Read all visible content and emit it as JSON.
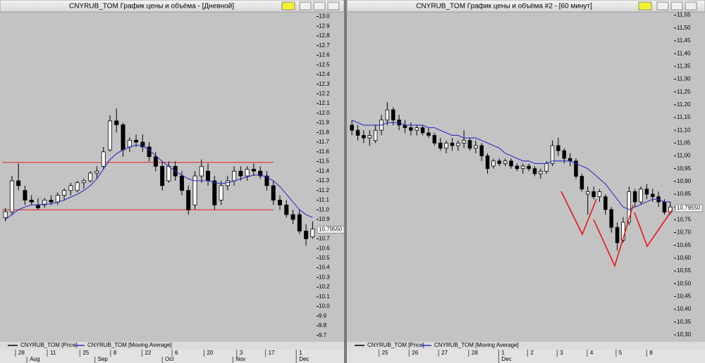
{
  "chart_data": [
    {
      "type": "candlestick",
      "title": "CNYRUB_TOM График цены и объёма - [Дневной]",
      "xlim": [
        0,
        48
      ],
      "xticks": [
        {
          "value": 2.05,
          "label": "28"
        },
        {
          "value": 6.9,
          "label": "11"
        },
        {
          "value": 11.9,
          "label": "25"
        },
        {
          "value": 16.6,
          "label": "8"
        },
        {
          "value": 21.4,
          "label": "22"
        },
        {
          "value": 26,
          "label": "6"
        },
        {
          "value": 30.9,
          "label": "20"
        },
        {
          "value": 35.9,
          "label": "3"
        },
        {
          "value": 40.3,
          "label": "17"
        },
        {
          "value": 45,
          "label": "1"
        }
      ],
      "month_ticks": [
        {
          "value": 3.8,
          "label": "Aug"
        },
        {
          "value": 14.2,
          "label": "Sep"
        },
        {
          "value": 24.5,
          "label": "Oct"
        },
        {
          "value": 35.3,
          "label": "Nov"
        },
        {
          "value": 45,
          "label": "Dec"
        }
      ],
      "ylim": [
        9.64,
        13.04
      ],
      "yticks": [
        9.7,
        9.8,
        9.9,
        {
          "value": 10,
          "label": "10.0"
        },
        10.1,
        10.2,
        10.3,
        10.4,
        10.5,
        10.6,
        10.7,
        10.8,
        10.9,
        {
          "value": 11,
          "label": "11.0"
        },
        11.1,
        11.2,
        11.3,
        11.4,
        11.5,
        11.6,
        11.7,
        11.8,
        11.9,
        {
          "value": 12,
          "label": "12.0"
        },
        12.1,
        12.2,
        12.3,
        12.4,
        12.5,
        12.6,
        12.7,
        12.8,
        12.9,
        {
          "value": 13,
          "label": "13.0"
        }
      ],
      "last_price": {
        "value": 10.7955,
        "label": "10,79550"
      },
      "hlines": [
        {
          "y": 11.49,
          "x": [
            0,
            41.5
          ],
          "color": "#e02020"
        },
        {
          "y": 11.0,
          "x": [
            0,
            41.5
          ],
          "color": "#e02020"
        }
      ],
      "series": [
        {
          "name": "CNYRUB_TOM [Price]",
          "color": "#000000",
          "up_color": "#ffffff",
          "down_color": "#000000",
          "ohlc": [
            [
              10.92,
              11.02,
              10.88,
              10.98
            ],
            [
              10.98,
              11.35,
              10.95,
              11.3
            ],
            [
              11.3,
              11.48,
              11.2,
              11.25
            ],
            [
              11.2,
              11.25,
              11.05,
              11.1
            ],
            [
              11.1,
              11.15,
              11.05,
              11.08
            ],
            [
              11.05,
              11.12,
              11.0,
              11.02
            ],
            [
              11.05,
              11.12,
              11.02,
              11.1
            ],
            [
              11.1,
              11.15,
              11.05,
              11.08
            ],
            [
              11.08,
              11.18,
              11.05,
              11.15
            ],
            [
              11.15,
              11.22,
              11.1,
              11.2
            ],
            [
              11.2,
              11.28,
              11.15,
              11.25
            ],
            [
              11.2,
              11.3,
              11.18,
              11.28
            ],
            [
              11.28,
              11.32,
              11.22,
              11.3
            ],
            [
              11.3,
              11.4,
              11.28,
              11.38
            ],
            [
              11.38,
              11.45,
              11.32,
              11.4
            ],
            [
              11.45,
              11.65,
              11.42,
              11.6
            ],
            [
              11.62,
              11.98,
              11.6,
              11.92
            ],
            [
              11.92,
              12.05,
              11.8,
              11.88
            ],
            [
              11.88,
              11.9,
              11.55,
              11.62
            ],
            [
              11.65,
              11.75,
              11.6,
              11.72
            ],
            [
              11.72,
              11.78,
              11.65,
              11.7
            ],
            [
              11.7,
              11.78,
              11.6,
              11.65
            ],
            [
              11.65,
              11.7,
              11.5,
              11.55
            ],
            [
              11.55,
              11.6,
              11.4,
              11.45
            ],
            [
              11.45,
              11.5,
              11.2,
              11.25
            ],
            [
              11.3,
              11.5,
              11.28,
              11.45
            ],
            [
              11.45,
              11.5,
              11.3,
              11.35
            ],
            [
              11.35,
              11.4,
              11.15,
              11.2
            ],
            [
              11.2,
              11.25,
              10.95,
              11.0
            ],
            [
              11.05,
              11.4,
              11.0,
              11.35
            ],
            [
              11.35,
              11.52,
              11.28,
              11.45
            ],
            [
              11.4,
              11.48,
              11.25,
              11.3
            ],
            [
              11.3,
              11.35,
              11.0,
              11.05
            ],
            [
              11.1,
              11.3,
              11.05,
              11.25
            ],
            [
              11.25,
              11.35,
              11.2,
              11.3
            ],
            [
              11.3,
              11.45,
              11.25,
              11.4
            ],
            [
              11.4,
              11.45,
              11.3,
              11.35
            ],
            [
              11.35,
              11.45,
              11.3,
              11.42
            ],
            [
              11.42,
              11.48,
              11.35,
              11.4
            ],
            [
              11.4,
              11.45,
              11.32,
              11.35
            ],
            [
              11.35,
              11.4,
              11.2,
              11.25
            ],
            [
              11.25,
              11.3,
              11.05,
              11.1
            ],
            [
              11.1,
              11.15,
              11.0,
              11.05
            ],
            [
              11.05,
              11.1,
              10.92,
              10.95
            ],
            [
              10.95,
              11.0,
              10.85,
              10.9
            ],
            [
              10.95,
              11.0,
              10.75,
              10.78
            ],
            [
              10.78,
              10.85,
              10.63,
              10.7
            ],
            [
              10.72,
              10.88,
              10.7,
              10.8
            ]
          ]
        },
        {
          "name": "CNYRUB_TOM [Moving Average]",
          "color": "#3030c8",
          "values": [
            10.9,
            10.95,
            11.0,
            11.03,
            11.05,
            11.05,
            11.06,
            11.06,
            11.08,
            11.1,
            11.13,
            11.16,
            11.2,
            11.25,
            11.32,
            11.42,
            11.52,
            11.58,
            11.62,
            11.65,
            11.67,
            11.66,
            11.62,
            11.56,
            11.5,
            11.45,
            11.4,
            11.36,
            11.32,
            11.3,
            11.3,
            11.3,
            11.28,
            11.27,
            11.28,
            11.3,
            11.32,
            11.34,
            11.36,
            11.36,
            11.34,
            11.3,
            11.24,
            11.16,
            11.08,
            11.0,
            10.95,
            10.92
          ]
        }
      ]
    },
    {
      "type": "candlestick",
      "title": "CNYRUB_TOM График цены и объёма #2 - [60 минут]",
      "xlim": [
        0,
        55
      ],
      "xticks": [
        {
          "value": 5.1,
          "label": "25"
        },
        {
          "value": 10.2,
          "label": "26"
        },
        {
          "value": 15.2,
          "label": "27"
        },
        {
          "value": 20.3,
          "label": "28"
        },
        {
          "value": 25.4,
          "label": "1"
        },
        {
          "value": 30.3,
          "label": "2"
        },
        {
          "value": 35.3,
          "label": "3"
        },
        {
          "value": 40.4,
          "label": "4"
        },
        {
          "value": 45.3,
          "label": "5"
        },
        {
          "value": 50.5,
          "label": "8"
        }
      ],
      "month_ticks": [
        {
          "value": 25.4,
          "label": "Dec"
        }
      ],
      "ylim": [
        10.275,
        11.56
      ],
      "yticks": [
        {
          "value": 10.3,
          "label": "10,30"
        },
        {
          "value": 10.35,
          "label": "10,35"
        },
        {
          "value": 10.4,
          "label": "10,40"
        },
        {
          "value": 10.45,
          "label": "10,45"
        },
        {
          "value": 10.5,
          "label": "10,50"
        },
        {
          "value": 10.55,
          "label": "10,55"
        },
        {
          "value": 10.6,
          "label": "10,60"
        },
        {
          "value": 10.65,
          "label": "10,65"
        },
        {
          "value": 10.7,
          "label": "10,70"
        },
        {
          "value": 10.75,
          "label": "10,75"
        },
        {
          "value": 10.8,
          "label": "10,80"
        },
        {
          "value": 10.85,
          "label": "10,85"
        },
        {
          "value": 10.9,
          "label": "10,90"
        },
        {
          "value": 10.95,
          "label": "10,95"
        },
        {
          "value": 11.0,
          "label": "11,00"
        },
        {
          "value": 11.05,
          "label": "11,05"
        },
        {
          "value": 11.1,
          "label": "11,10"
        },
        {
          "value": 11.15,
          "label": "11,15"
        },
        {
          "value": 11.2,
          "label": "11,20"
        },
        {
          "value": 11.25,
          "label": "11,25"
        },
        {
          "value": 11.3,
          "label": "11,30"
        },
        {
          "value": 11.35,
          "label": "11,35"
        },
        {
          "value": 11.4,
          "label": "11,40"
        },
        {
          "value": 11.45,
          "label": "11,45"
        },
        {
          "value": 11.5,
          "label": "11,50"
        },
        {
          "value": 11.55,
          "label": "11,55"
        }
      ],
      "last_price": {
        "value": 10.7955,
        "label": "10,79550"
      },
      "series": [
        {
          "name": "CNYRUB_TOM [Price]",
          "color": "#000000",
          "up_color": "#ffffff",
          "down_color": "#000000",
          "ohlc": [
            [
              11.12,
              11.14,
              11.08,
              11.1
            ],
            [
              11.1,
              11.12,
              11.06,
              11.08
            ],
            [
              11.08,
              11.1,
              11.05,
              11.07
            ],
            [
              11.07,
              11.1,
              11.04,
              11.08
            ],
            [
              11.06,
              11.12,
              11.05,
              11.1
            ],
            [
              11.1,
              11.16,
              11.08,
              11.14
            ],
            [
              11.14,
              11.21,
              11.12,
              11.18
            ],
            [
              11.18,
              11.19,
              11.12,
              11.14
            ],
            [
              11.14,
              11.16,
              11.1,
              11.12
            ],
            [
              11.12,
              11.14,
              11.09,
              11.11
            ],
            [
              11.11,
              11.13,
              11.08,
              11.1
            ],
            [
              11.1,
              11.12,
              11.08,
              11.11
            ],
            [
              11.11,
              11.12,
              11.08,
              11.09
            ],
            [
              11.09,
              11.11,
              11.07,
              11.08
            ],
            [
              11.08,
              11.09,
              11.04,
              11.05
            ],
            [
              11.05,
              11.07,
              11.02,
              11.03
            ],
            [
              11.03,
              11.06,
              11.01,
              11.05
            ],
            [
              11.05,
              11.07,
              11.02,
              11.04
            ],
            [
              11.04,
              11.06,
              11.02,
              11.05
            ],
            [
              11.05,
              11.1,
              11.03,
              11.06
            ],
            [
              11.06,
              11.07,
              11.02,
              11.03
            ],
            [
              11.03,
              11.06,
              11.01,
              11.04
            ],
            [
              11.04,
              11.05,
              10.98,
              11.0
            ],
            [
              11.0,
              11.01,
              10.93,
              10.95
            ],
            [
              10.96,
              10.99,
              10.95,
              10.98
            ],
            [
              10.98,
              10.99,
              10.96,
              10.97
            ],
            [
              10.97,
              10.99,
              10.96,
              10.98
            ],
            [
              10.98,
              10.99,
              10.95,
              10.96
            ],
            [
              10.96,
              10.97,
              10.94,
              10.95
            ],
            [
              10.95,
              10.97,
              10.93,
              10.96
            ],
            [
              10.96,
              10.97,
              10.94,
              10.95
            ],
            [
              10.95,
              10.96,
              10.92,
              10.93
            ],
            [
              10.93,
              10.95,
              10.91,
              10.94
            ],
            [
              10.94,
              10.98,
              10.93,
              10.97
            ],
            [
              10.97,
              11.06,
              10.96,
              11.04
            ],
            [
              11.04,
              11.07,
              11.0,
              11.02
            ],
            [
              11.02,
              11.03,
              10.97,
              10.99
            ],
            [
              10.99,
              11.01,
              10.96,
              10.98
            ],
            [
              10.98,
              10.99,
              10.91,
              10.92
            ],
            [
              10.92,
              10.93,
              10.86,
              10.87
            ],
            [
              10.85,
              10.88,
              10.77,
              10.86
            ],
            [
              10.86,
              10.88,
              10.83,
              10.84
            ],
            [
              10.84,
              10.87,
              10.82,
              10.86
            ],
            [
              10.84,
              10.85,
              10.77,
              10.79
            ],
            [
              10.79,
              10.8,
              10.7,
              10.72
            ],
            [
              10.72,
              10.74,
              10.63,
              10.66
            ],
            [
              10.67,
              10.76,
              10.66,
              10.74
            ],
            [
              10.74,
              10.88,
              10.73,
              10.86
            ],
            [
              10.86,
              10.87,
              10.8,
              10.82
            ],
            [
              10.82,
              10.88,
              10.81,
              10.87
            ],
            [
              10.87,
              10.89,
              10.83,
              10.85
            ],
            [
              10.85,
              10.87,
              10.82,
              10.84
            ],
            [
              10.84,
              10.86,
              10.8,
              10.82
            ],
            [
              10.82,
              10.83,
              10.77,
              10.78
            ],
            [
              10.78,
              10.82,
              10.77,
              10.8
            ]
          ]
        },
        {
          "name": "CNYRUB_TOM [Moving Average]",
          "color": "#3030c8",
          "values": [
            11.14,
            11.13,
            11.12,
            11.12,
            11.12,
            11.12,
            11.13,
            11.13,
            11.13,
            11.12,
            11.12,
            11.12,
            11.12,
            11.11,
            11.11,
            11.1,
            11.09,
            11.08,
            11.08,
            11.07,
            11.07,
            11.07,
            11.06,
            11.05,
            11.04,
            11.03,
            11.01,
            11.0,
            10.99,
            10.98,
            10.98,
            10.97,
            10.97,
            10.97,
            10.98,
            10.98,
            10.98,
            10.98,
            10.97,
            10.96,
            10.95,
            10.93,
            10.91,
            10.89,
            10.86,
            10.83,
            10.8,
            10.79,
            10.8,
            10.81,
            10.82,
            10.83,
            10.83,
            10.82,
            10.82
          ]
        }
      ]
    }
  ]
}
